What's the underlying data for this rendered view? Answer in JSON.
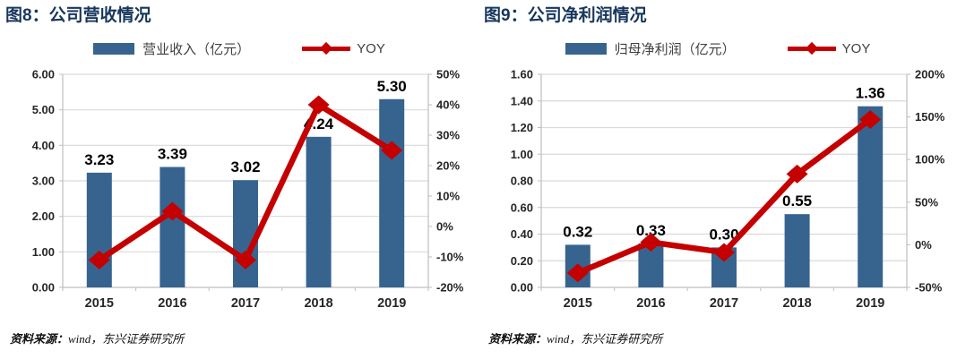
{
  "colors": {
    "bar_blue": "#36648F",
    "line_red": "#C40000",
    "title_navy": "#17365D",
    "gridline": "#D9D9D9",
    "axis_line": "#BFBFBF",
    "tick_text": "#262626",
    "data_label": "#000000",
    "legend_text": "#404040"
  },
  "source": {
    "label": "资料来源：",
    "text": "wind，东兴证券研究所"
  },
  "chart_data": [
    {
      "type": "bar",
      "title": "图8：公司营收情况",
      "categories": [
        "2015",
        "2016",
        "2017",
        "2018",
        "2019"
      ],
      "series": [
        {
          "name": "营业收入（亿元）",
          "kind": "bar",
          "axis": "left",
          "values": [
            3.23,
            3.39,
            3.02,
            4.24,
            5.3
          ],
          "labels": [
            "3.23",
            "3.39",
            "3.02",
            "4.24",
            "5.30"
          ],
          "color": "#36648F"
        },
        {
          "name": "YOY",
          "kind": "line",
          "axis": "right",
          "marker": "diamond",
          "values_pct": [
            -11,
            5,
            -11,
            40,
            25
          ],
          "color": "#C40000"
        }
      ],
      "left_axis": {
        "min": 0,
        "max": 6,
        "step": 1,
        "format": "0.00"
      },
      "right_axis": {
        "min": -20,
        "max": 50,
        "step": 10,
        "format": "percent"
      },
      "grid": true,
      "legend_position": "top"
    },
    {
      "type": "bar",
      "title": "图9：公司净利润情况",
      "categories": [
        "2015",
        "2016",
        "2017",
        "2018",
        "2019"
      ],
      "series": [
        {
          "name": "归母净利润（亿元）",
          "kind": "bar",
          "axis": "left",
          "values": [
            0.32,
            0.33,
            0.3,
            0.55,
            1.36
          ],
          "labels": [
            "0.32",
            "0.33",
            "0.30",
            "0.55",
            "1.36"
          ],
          "color": "#36648F"
        },
        {
          "name": "YOY",
          "kind": "line",
          "axis": "right",
          "marker": "diamond",
          "values_pct": [
            -33,
            3,
            -9,
            83,
            147
          ],
          "color": "#C40000"
        }
      ],
      "left_axis": {
        "min": 0,
        "max": 1.6,
        "step": 0.2,
        "format": "0.00"
      },
      "right_axis": {
        "min": -50,
        "max": 200,
        "step": 50,
        "format": "percent"
      },
      "grid": true,
      "legend_position": "top"
    }
  ]
}
